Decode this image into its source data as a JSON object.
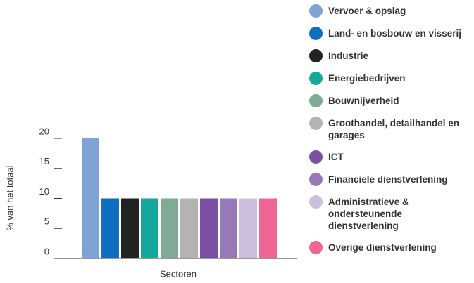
{
  "chart_data": {
    "type": "bar",
    "x_label": "Sectoren",
    "y_label": "% van het totaal",
    "categories": [
      "Vervoer & opslag",
      "Land- en bosbouw en visserij",
      "Industrie",
      "Energiebedrijven",
      "Bouwnijverheid",
      "Groothandel, detailhandel en garages",
      "ICT",
      "Financiele dienstverlening",
      "Administratieve & ondersteunende dienstverlening",
      "Overige dienstverlening"
    ],
    "values": [
      20,
      10,
      10,
      10,
      10,
      10,
      10,
      10,
      10,
      10
    ],
    "colors": [
      "#7fa3d6",
      "#0f6fbf",
      "#222222",
      "#13a89a",
      "#7fab94",
      "#b3b3b3",
      "#7c4fa3",
      "#9779b7",
      "#cbbfdd",
      "#ee6694"
    ],
    "ylim": [
      0,
      20
    ],
    "yticks": [
      0,
      5,
      10,
      15,
      20
    ],
    "legend": "right"
  }
}
